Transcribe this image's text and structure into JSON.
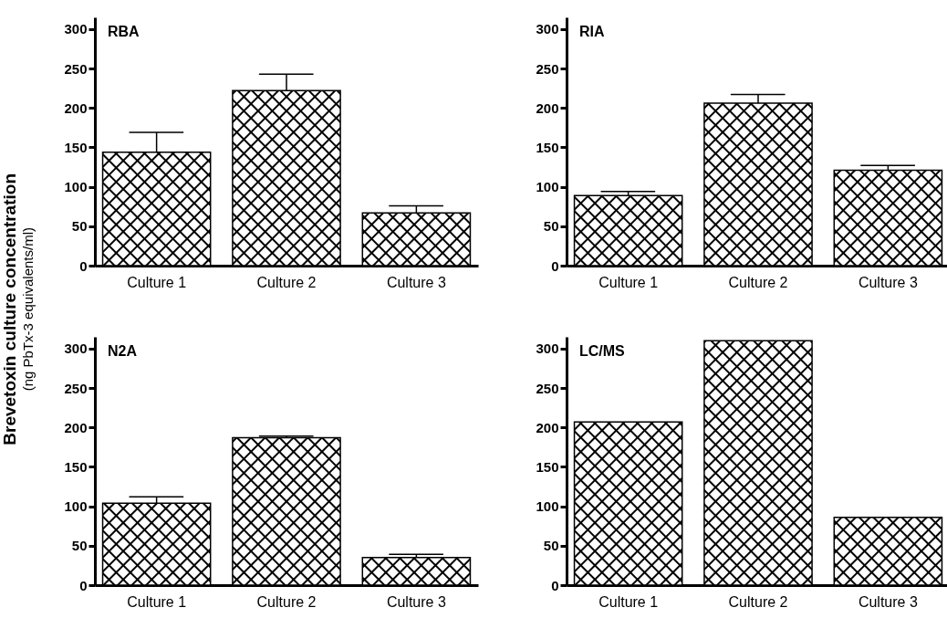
{
  "chart_data": [
    {
      "type": "bar",
      "title": "RBA",
      "ylabel": "Brevetoxin culture concentration\n(ng PbTx-3 equivalents/ml)",
      "categories": [
        "Culture 1",
        "Culture 2",
        "Culture 3"
      ],
      "values": [
        144,
        222,
        67
      ],
      "errors": [
        [
          144,
          169
        ],
        [
          222,
          243
        ],
        [
          67,
          76
        ]
      ],
      "color": "#000000",
      "ylim": [
        0,
        315
      ],
      "yticks": [
        0,
        50,
        100,
        150,
        200,
        250,
        300
      ]
    },
    {
      "type": "bar",
      "title": "RIA",
      "categories": [
        "Culture 1",
        "Culture 2",
        "Culture 3"
      ],
      "values": [
        89,
        206,
        121
      ],
      "errors": [
        [
          89,
          94
        ],
        [
          206,
          217
        ],
        [
          121,
          127
        ]
      ],
      "color": "#000000",
      "ylim": [
        0,
        315
      ],
      "yticks": [
        0,
        50,
        100,
        150,
        200,
        250,
        300
      ]
    },
    {
      "type": "bar",
      "title": "N2A",
      "categories": [
        "Culture 1",
        "Culture 2",
        "Culture 3"
      ],
      "values": [
        104,
        187,
        35
      ],
      "errors": [
        [
          104,
          112
        ],
        [
          187,
          189
        ],
        [
          35,
          39
        ]
      ],
      "color": "#000000",
      "ylim": [
        0,
        315
      ],
      "yticks": [
        0,
        50,
        100,
        150,
        200,
        250,
        300
      ]
    },
    {
      "type": "bar",
      "title": "LC/MS",
      "categories": [
        "Culture 1",
        "Culture 2",
        "Culture 3"
      ],
      "values": [
        207,
        310,
        86
      ],
      "color": "#000000",
      "ylim": [
        0,
        315
      ],
      "yticks": [
        0,
        50,
        100,
        150,
        200,
        250,
        300
      ]
    }
  ]
}
